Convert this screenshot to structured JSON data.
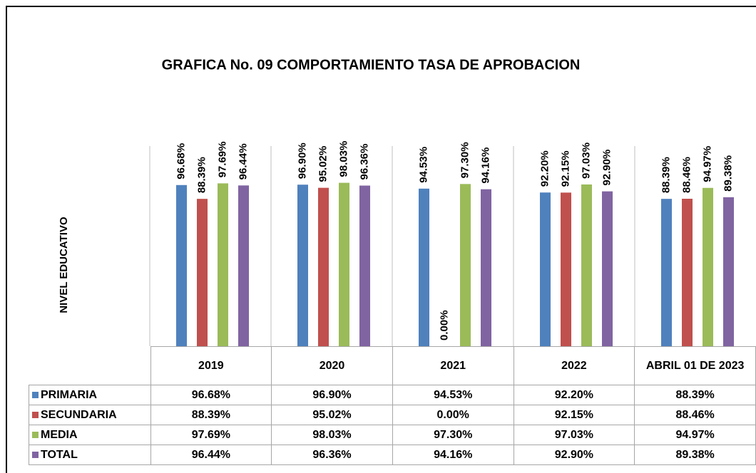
{
  "chart_data": {
    "type": "bar",
    "title": "GRAFICA No. 09 COMPORTAMIENTO TASA DE APROBACION",
    "y_label": "NIVEL EDUCATIVO",
    "categories": [
      "2019",
      "2020",
      "2021",
      "2022",
      "ABRIL 01 DE 2023"
    ],
    "ylim": [
      0,
      100
    ],
    "series": [
      {
        "name": "PRIMARIA",
        "color": "#4f81bd",
        "values": [
          96.68,
          96.9,
          94.53,
          92.2,
          88.39
        ],
        "value_labels": [
          "96.68%",
          "96.90%",
          "94.53%",
          "92.20%",
          "88.39%"
        ]
      },
      {
        "name": "SECUNDARIA",
        "color": "#c0504d",
        "values": [
          88.39,
          95.02,
          0.0,
          92.15,
          88.46
        ],
        "value_labels": [
          "88.39%",
          "95.02%",
          "0.00%",
          "92.15%",
          "88.46%"
        ]
      },
      {
        "name": "MEDIA",
        "color": "#9bbb59",
        "values": [
          97.69,
          98.03,
          97.3,
          97.03,
          94.97
        ],
        "value_labels": [
          "97.69%",
          "98.03%",
          "97.30%",
          "97.03%",
          "94.97%"
        ]
      },
      {
        "name": "TOTAL",
        "color": "#8064a2",
        "values": [
          96.44,
          96.36,
          94.16,
          92.9,
          89.38
        ],
        "value_labels": [
          "96.44%",
          "96.36%",
          "94.16%",
          "92.90%",
          "89.38%"
        ]
      }
    ]
  }
}
